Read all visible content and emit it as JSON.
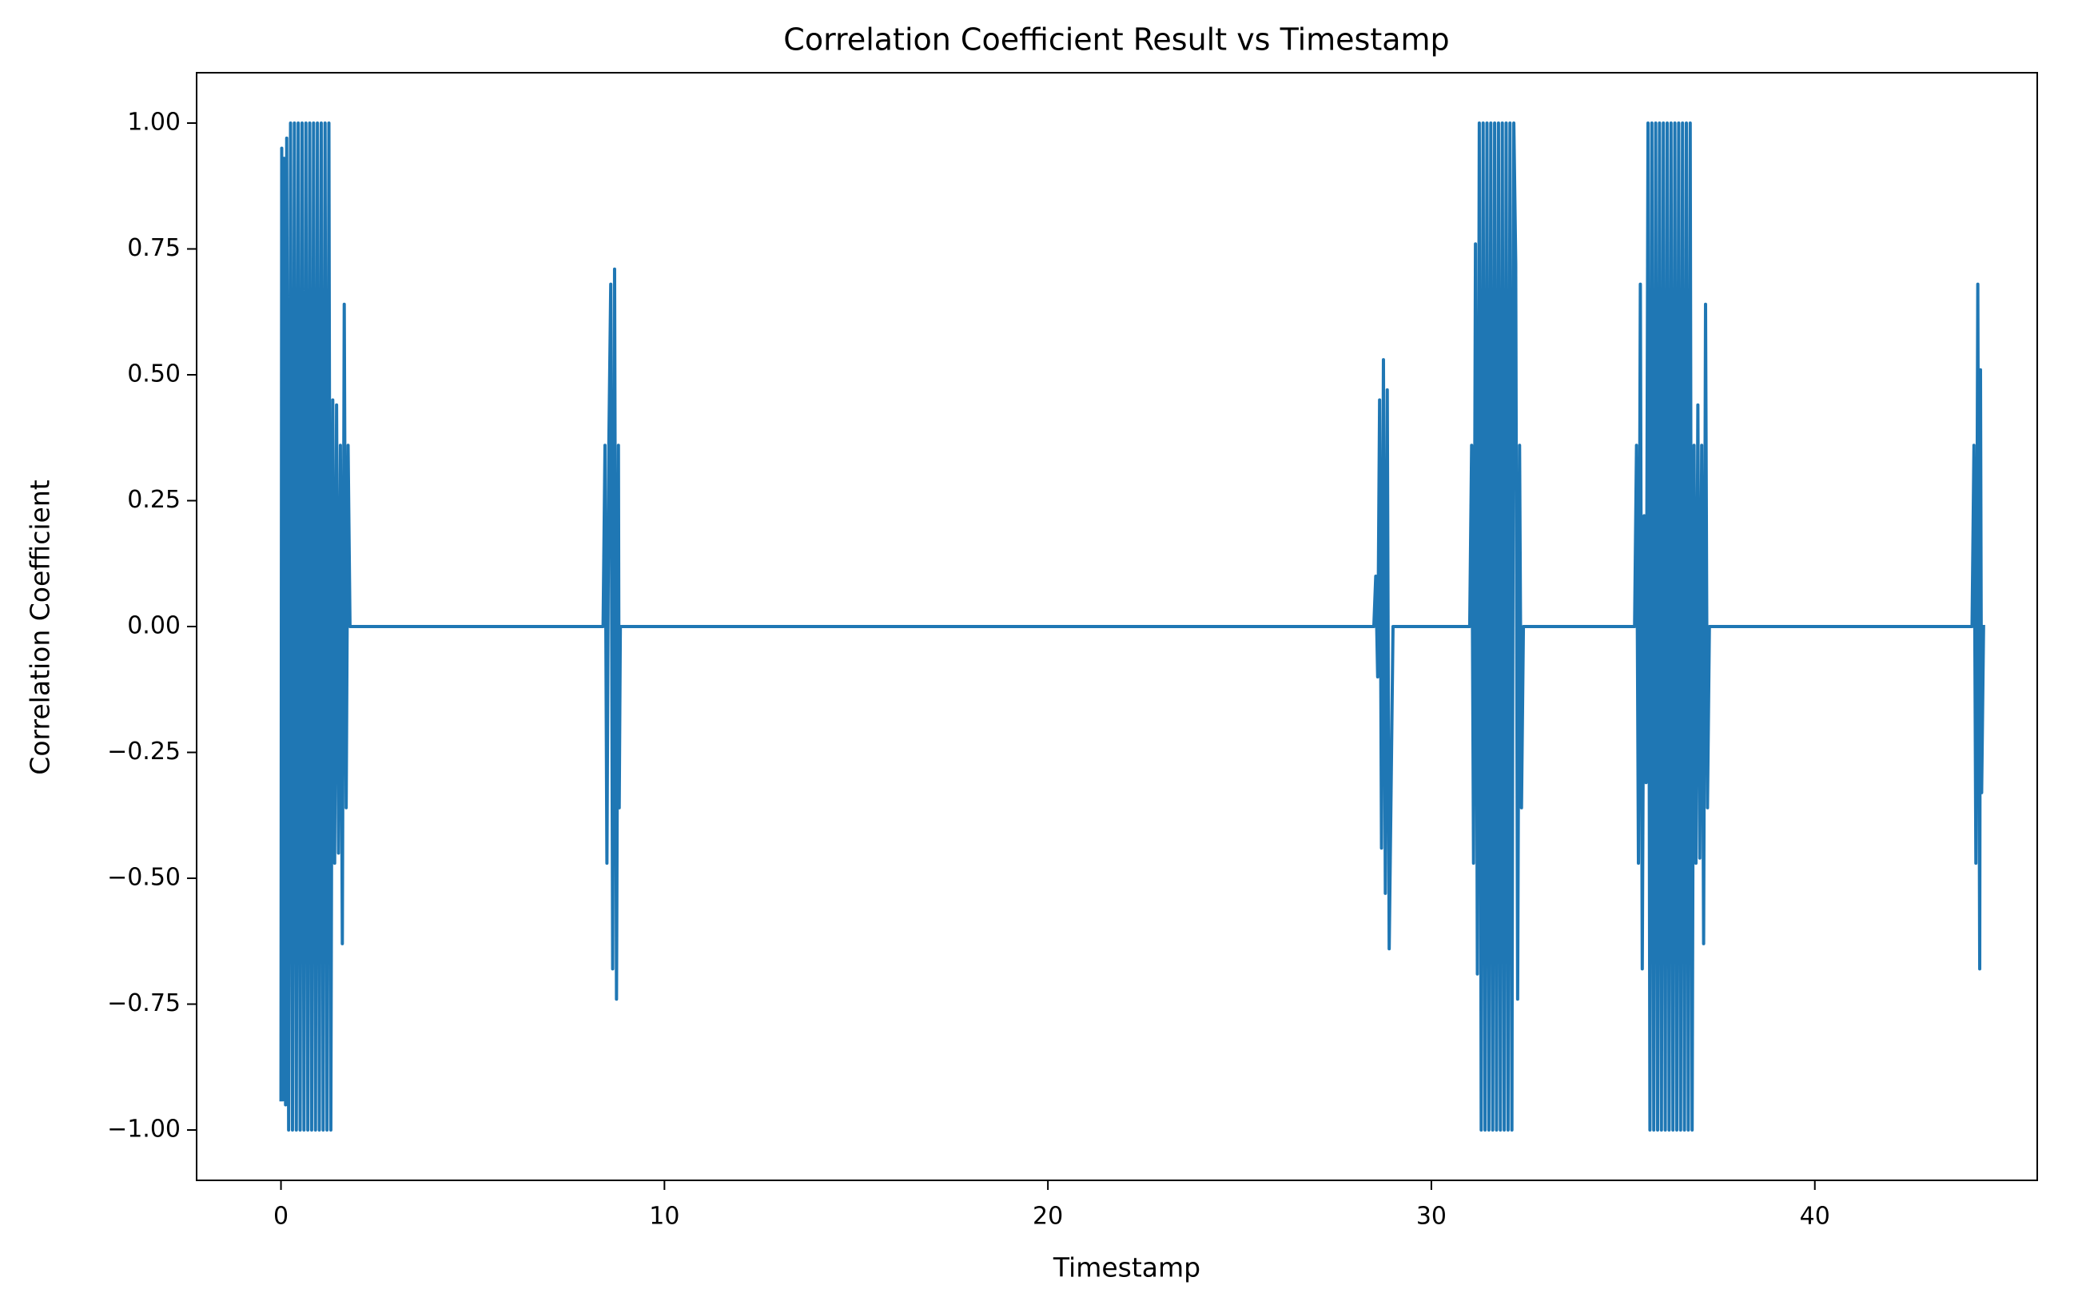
{
  "chart_data": {
    "type": "line",
    "title": "Correlation Coefficient Result vs Timestamp",
    "xlabel": "Timestamp",
    "ylabel": "Correlation Coefficient",
    "color": "#1f77b4",
    "xlim": [
      -2.2,
      45.8
    ],
    "ylim": [
      -1.1,
      1.1
    ],
    "xticks": [
      0,
      10,
      20,
      30,
      40
    ],
    "yticks": [
      {
        "value": -1,
        "label": "−1.00"
      },
      {
        "value": -0.75,
        "label": "−0.75"
      },
      {
        "value": -0.5,
        "label": "−0.50"
      },
      {
        "value": -0.25,
        "label": "−0.25"
      },
      {
        "value": 0,
        "label": "0.00"
      },
      {
        "value": 0.25,
        "label": "0.25"
      },
      {
        "value": 0.5,
        "label": "0.50"
      },
      {
        "value": 0.75,
        "label": "0.75"
      },
      {
        "value": 1,
        "label": "1.00"
      }
    ],
    "x": [
      0,
      0.02,
      0.05,
      0.08,
      0.12,
      0.15,
      0.2,
      0.25,
      0.3,
      0.35,
      0.4,
      0.45,
      0.5,
      0.55,
      0.6,
      0.65,
      0.7,
      0.75,
      0.8,
      0.85,
      0.9,
      0.95,
      1.0,
      1.05,
      1.1,
      1.15,
      1.2,
      1.25,
      1.3,
      1.35,
      1.4,
      1.45,
      1.5,
      1.55,
      1.6,
      1.65,
      1.7,
      1.75,
      1.8,
      8.4,
      8.45,
      8.5,
      8.55,
      8.6,
      8.65,
      8.7,
      8.75,
      8.8,
      8.82,
      8.85,
      28.5,
      28.55,
      28.6,
      28.65,
      28.7,
      28.75,
      28.8,
      28.85,
      28.9,
      29.0,
      31.0,
      31.05,
      31.1,
      31.15,
      31.2,
      31.25,
      31.3,
      31.35,
      31.4,
      31.45,
      31.5,
      31.55,
      31.6,
      31.65,
      31.7,
      31.75,
      31.8,
      31.85,
      31.9,
      31.95,
      32.0,
      32.05,
      32.1,
      32.15,
      32.2,
      32.25,
      32.3,
      32.35,
      32.4,
      35.3,
      35.35,
      35.4,
      35.45,
      35.5,
      35.55,
      35.6,
      35.65,
      35.7,
      35.75,
      35.8,
      35.85,
      35.9,
      35.95,
      36.0,
      36.05,
      36.1,
      36.15,
      36.2,
      36.25,
      36.3,
      36.35,
      36.4,
      36.45,
      36.5,
      36.55,
      36.6,
      36.65,
      36.7,
      36.75,
      36.8,
      36.85,
      36.9,
      36.95,
      37.0,
      37.05,
      37.1,
      37.15,
      37.2,
      37.25,
      44.1,
      44.15,
      44.2,
      44.25,
      44.3,
      44.32,
      44.35,
      44.4
    ],
    "values": [
      -0.94,
      0.95,
      -0.94,
      0.93,
      -0.95,
      0.97,
      -1,
      1,
      -1,
      1,
      -1,
      1,
      -1,
      1,
      -1,
      1,
      -1,
      1,
      -1,
      1,
      -1,
      1,
      -1,
      1,
      -1,
      1,
      -1,
      1,
      -1,
      0.45,
      -0.47,
      0.44,
      -0.45,
      0.36,
      -0.63,
      0.64,
      -0.36,
      0.36,
      0,
      0,
      0.36,
      -0.47,
      0.36,
      0.68,
      -0.68,
      0.71,
      -0.74,
      0.36,
      -0.36,
      0,
      0,
      0.1,
      -0.1,
      0.45,
      -0.44,
      0.53,
      -0.53,
      0.47,
      -0.64,
      0,
      0,
      0.36,
      -0.47,
      0.76,
      -0.69,
      1,
      -1,
      1,
      -1,
      1,
      -1,
      1,
      -1,
      1,
      -1,
      1,
      -1,
      1,
      -1,
      1,
      -1,
      1,
      -1,
      1,
      0.72,
      -0.74,
      0.36,
      -0.36,
      0,
      0,
      0.36,
      -0.47,
      0.68,
      -0.68,
      0.22,
      -0.31,
      1,
      -1,
      1,
      -1,
      1,
      -1,
      1,
      -1,
      1,
      -1,
      1,
      -1,
      1,
      -1,
      1,
      -1,
      1,
      -1,
      1,
      -1,
      1,
      -1,
      1,
      -1,
      0.36,
      -0.47,
      0.44,
      -0.46,
      0.36,
      -0.63,
      0.64,
      -0.36,
      0,
      0,
      0.36,
      -0.47,
      0.68,
      -0.68,
      0.51,
      -0.33,
      0
    ]
  }
}
